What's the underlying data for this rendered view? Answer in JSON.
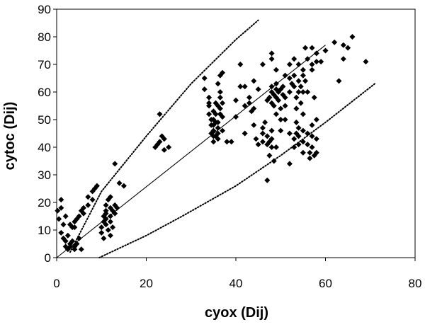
{
  "chart_data": {
    "type": "scatter",
    "title": "",
    "xlabel": "cyox (Dij)",
    "ylabel": "cytoc (Dij)",
    "xlim": [
      0,
      80
    ],
    "ylim": [
      0,
      90
    ],
    "xticks": [
      "0",
      "20",
      "40",
      "60",
      "80"
    ],
    "yticks": [
      "0",
      "10",
      "20",
      "30",
      "40",
      "50",
      "60",
      "70",
      "80",
      "90"
    ],
    "grid": false,
    "legend": "none",
    "marker": "diamond",
    "marker_color": "#000000",
    "points": [
      [
        0.2,
        17
      ],
      [
        0.5,
        14
      ],
      [
        1,
        21
      ],
      [
        1,
        18
      ],
      [
        1,
        9
      ],
      [
        1.5,
        12
      ],
      [
        2,
        6
      ],
      [
        2,
        4
      ],
      [
        2.5,
        3
      ],
      [
        2,
        15
      ],
      [
        3,
        5
      ],
      [
        3,
        4
      ],
      [
        3.5,
        6
      ],
      [
        4,
        4
      ],
      [
        4.5,
        5
      ],
      [
        4,
        3
      ],
      [
        5,
        7
      ],
      [
        5.5,
        3
      ],
      [
        4,
        13
      ],
      [
        4.5,
        14
      ],
      [
        4,
        11
      ],
      [
        5,
        15
      ],
      [
        5.5,
        17
      ],
      [
        6,
        16
      ],
      [
        6,
        18
      ],
      [
        7,
        19
      ],
      [
        7,
        22
      ],
      [
        8,
        24
      ],
      [
        8,
        21
      ],
      [
        8.5,
        25
      ],
      [
        9,
        26
      ],
      [
        3,
        12
      ],
      [
        3.5,
        11
      ],
      [
        2.5,
        8
      ],
      [
        1.5,
        7
      ],
      [
        10,
        9
      ],
      [
        10,
        11
      ],
      [
        10.5,
        13
      ],
      [
        10.5,
        7
      ],
      [
        11,
        16
      ],
      [
        11,
        19
      ],
      [
        11,
        14
      ],
      [
        11.5,
        10
      ],
      [
        11.5,
        21
      ],
      [
        12,
        18
      ],
      [
        12,
        15
      ],
      [
        12,
        22
      ],
      [
        12.5,
        17
      ],
      [
        12.5,
        11
      ],
      [
        13,
        19
      ],
      [
        13,
        16
      ],
      [
        13.5,
        18
      ],
      [
        13,
        34
      ],
      [
        14,
        27
      ],
      [
        15,
        26
      ],
      [
        11,
        12
      ],
      [
        10.5,
        15
      ],
      [
        12,
        8
      ],
      [
        11,
        17
      ],
      [
        12,
        13
      ],
      [
        22,
        40
      ],
      [
        23,
        42
      ],
      [
        23,
        52
      ],
      [
        23.5,
        44
      ],
      [
        24,
        43
      ],
      [
        24,
        39
      ],
      [
        25,
        40
      ],
      [
        22.5,
        41
      ],
      [
        33,
        65
      ],
      [
        34,
        55
      ],
      [
        34,
        58
      ],
      [
        34.5,
        50
      ],
      [
        34.5,
        45
      ],
      [
        35,
        53
      ],
      [
        35,
        48
      ],
      [
        35,
        46
      ],
      [
        35,
        42
      ],
      [
        35.5,
        56
      ],
      [
        35.5,
        52
      ],
      [
        35.5,
        44
      ],
      [
        36,
        55
      ],
      [
        36,
        49
      ],
      [
        36,
        47
      ],
      [
        36,
        43
      ],
      [
        36.5,
        60
      ],
      [
        36.5,
        58
      ],
      [
        36.5,
        54
      ],
      [
        37,
        51
      ],
      [
        37,
        46
      ],
      [
        35,
        50
      ],
      [
        34,
        52
      ],
      [
        35,
        44
      ],
      [
        36,
        45
      ],
      [
        34.5,
        48
      ],
      [
        35.5,
        49
      ],
      [
        36.5,
        52
      ],
      [
        37,
        56
      ],
      [
        36,
        63
      ],
      [
        36.5,
        66
      ],
      [
        37,
        67
      ],
      [
        33,
        61
      ],
      [
        34,
        56
      ],
      [
        38,
        42
      ],
      [
        39,
        42
      ],
      [
        40,
        51
      ],
      [
        40,
        57
      ],
      [
        41,
        62
      ],
      [
        41,
        70
      ],
      [
        42,
        45
      ],
      [
        42,
        55
      ],
      [
        42,
        62
      ],
      [
        43,
        58
      ],
      [
        43,
        56
      ],
      [
        43.5,
        53
      ],
      [
        44,
        64
      ],
      [
        44,
        54
      ],
      [
        44,
        48
      ],
      [
        44.5,
        43
      ],
      [
        45,
        41
      ],
      [
        45,
        61
      ],
      [
        46,
        47
      ],
      [
        46,
        45
      ],
      [
        46.5,
        49
      ],
      [
        47,
        44
      ],
      [
        47,
        41
      ],
      [
        47.5,
        42
      ],
      [
        47.5,
        37
      ],
      [
        48,
        43
      ],
      [
        48,
        40
      ],
      [
        48,
        46
      ],
      [
        48.5,
        35
      ],
      [
        47,
        28
      ],
      [
        46,
        42
      ],
      [
        49,
        40
      ],
      [
        46,
        70
      ],
      [
        48,
        72
      ],
      [
        48,
        74
      ],
      [
        49,
        63
      ],
      [
        49,
        68
      ],
      [
        47,
        57
      ],
      [
        47.5,
        58
      ],
      [
        48,
        60
      ],
      [
        48,
        62
      ],
      [
        48,
        56
      ],
      [
        48.5,
        59
      ],
      [
        48.5,
        55
      ],
      [
        49,
        58
      ],
      [
        49,
        61
      ],
      [
        49,
        52
      ],
      [
        49.5,
        57
      ],
      [
        49.5,
        60
      ],
      [
        50,
        61
      ],
      [
        50,
        54
      ],
      [
        50,
        50
      ],
      [
        50.5,
        59
      ],
      [
        50.5,
        62
      ],
      [
        51,
        58
      ],
      [
        51,
        55
      ],
      [
        51,
        50
      ],
      [
        52,
        60
      ],
      [
        52,
        65
      ],
      [
        52.5,
        63
      ],
      [
        52,
        34
      ],
      [
        50,
        46
      ],
      [
        53,
        66
      ],
      [
        53,
        62
      ],
      [
        53.5,
        58
      ],
      [
        53.5,
        54
      ],
      [
        53.5,
        49
      ],
      [
        53.5,
        45
      ],
      [
        54,
        64
      ],
      [
        54,
        60
      ],
      [
        54,
        44
      ],
      [
        54,
        41
      ],
      [
        54.5,
        62
      ],
      [
        54.5,
        56
      ],
      [
        55,
        66
      ],
      [
        55,
        60
      ],
      [
        55,
        52
      ],
      [
        55,
        42
      ],
      [
        55,
        38
      ],
      [
        55.5,
        76
      ],
      [
        55.5,
        64
      ],
      [
        56,
        60
      ],
      [
        56,
        45
      ],
      [
        56,
        41
      ],
      [
        56.5,
        38
      ],
      [
        56.5,
        36
      ],
      [
        57,
        48
      ],
      [
        57,
        44
      ],
      [
        57,
        40
      ],
      [
        57,
        68
      ],
      [
        57,
        76
      ],
      [
        57.5,
        58
      ],
      [
        57.5,
        37
      ],
      [
        58,
        50
      ],
      [
        58,
        43
      ],
      [
        58,
        71
      ],
      [
        58,
        38
      ],
      [
        53,
        72
      ],
      [
        54,
        70
      ],
      [
        55,
        68
      ],
      [
        56,
        72
      ],
      [
        57,
        70
      ],
      [
        58,
        74
      ],
      [
        59,
        71
      ],
      [
        60,
        75
      ],
      [
        62,
        78
      ],
      [
        63,
        64
      ],
      [
        64,
        72
      ],
      [
        64,
        77
      ],
      [
        65,
        76
      ],
      [
        66,
        80
      ],
      [
        69,
        71
      ],
      [
        54,
        47
      ],
      [
        55,
        46
      ],
      [
        53,
        43
      ],
      [
        52,
        70
      ],
      [
        51,
        66
      ],
      [
        53,
        40
      ],
      [
        52,
        45
      ]
    ],
    "series": [
      {
        "style": "solid",
        "color": "#000000",
        "x": [
          0,
          60
        ],
        "y": [
          0,
          77
        ]
      },
      {
        "style": "dotted",
        "color": "#000000",
        "x": [
          3,
          10,
          20,
          30,
          40,
          45
        ],
        "y": [
          2,
          24,
          44,
          63,
          79,
          86
        ]
      },
      {
        "style": "dotted",
        "color": "#000000",
        "x": [
          9.5,
          20,
          28,
          40,
          50,
          60,
          71
        ],
        "y": [
          0,
          8,
          15,
          26,
          37,
          49,
          63
        ]
      }
    ]
  }
}
